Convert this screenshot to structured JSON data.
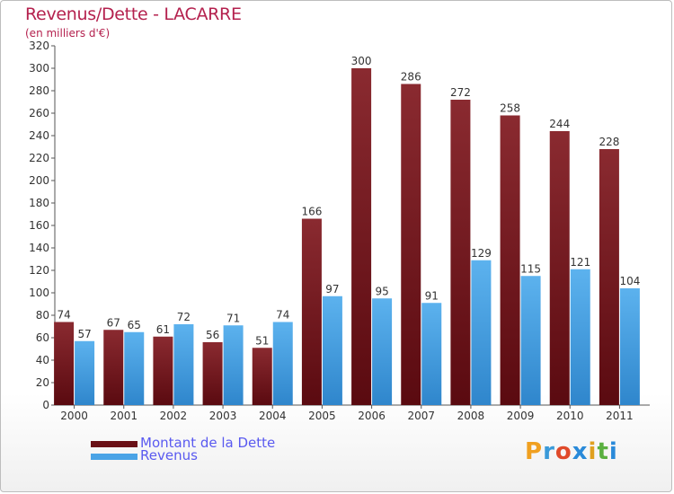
{
  "title": "Revenus/Dette - LACARRE",
  "subtitle": "(en milliers d'€)",
  "colors": {
    "debt": "#7a1e24",
    "revenue": "#4aa3e6",
    "title": "#b4214e",
    "legend_text": "#5a5af0"
  },
  "legend": {
    "debt_label": "Montant de la Dette",
    "revenue_label": "Revenus"
  },
  "logo": {
    "letters": [
      "P",
      "r",
      "o",
      "x",
      "i",
      "t",
      "i"
    ],
    "colors": [
      "#f0a020",
      "#3a9ad9",
      "#e04a2a",
      "#2a8ad9",
      "#e0a020",
      "#5ab040",
      "#2a8ad9"
    ]
  },
  "chart_data": {
    "type": "bar",
    "title": "Revenus/Dette - LACARRE",
    "ylabel": "(en milliers d'€)",
    "xlabel": "",
    "ylim": [
      0,
      320
    ],
    "ytick_step": 20,
    "grid": false,
    "legend": "bottom-left",
    "categories": [
      "2000",
      "2001",
      "2002",
      "2003",
      "2004",
      "2005",
      "2006",
      "2007",
      "2008",
      "2009",
      "2010",
      "2011"
    ],
    "series": [
      {
        "name": "Montant de la Dette",
        "values": [
          74,
          67,
          61,
          56,
          51,
          166,
          300,
          286,
          272,
          258,
          244,
          228
        ]
      },
      {
        "name": "Revenus",
        "values": [
          57,
          65,
          72,
          71,
          74,
          97,
          95,
          91,
          129,
          115,
          121,
          104
        ]
      }
    ]
  }
}
